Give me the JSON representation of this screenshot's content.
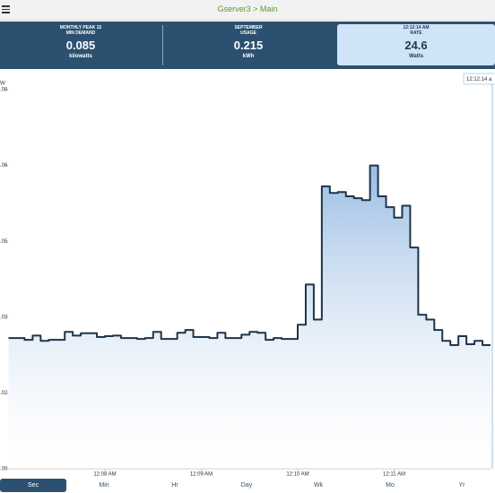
{
  "header": {
    "title": "Gserver3 > Main"
  },
  "stats": [
    {
      "label": [
        "MONTHLY PEAK 15",
        "MIN DEMAND"
      ],
      "value": "0.085",
      "unit": "kilowatts",
      "selected": false
    },
    {
      "label": [
        "SEPTEMBER",
        "USAGE"
      ],
      "value": "0.215",
      "unit": "kWh",
      "selected": false
    },
    {
      "label": [
        "12:12:14 AM",
        "RATE"
      ],
      "value": "24.6",
      "unit": "Watts",
      "selected": true
    }
  ],
  "chart_data": {
    "type": "line",
    "step": true,
    "ylabel": "W",
    "color": "#1f3548",
    "fill_color": "#8fb5e0",
    "hover_label": "12:12:14 a",
    "x": [
      420,
      425,
      430,
      435,
      440,
      445,
      450,
      455,
      460,
      465,
      470,
      475,
      480,
      485,
      490,
      495,
      500,
      505,
      510,
      515,
      520,
      525,
      530,
      535,
      540,
      545,
      550,
      555,
      560,
      565,
      570,
      575,
      580,
      585,
      590,
      595,
      600,
      605,
      610,
      615,
      620,
      625,
      630,
      635,
      640,
      645,
      650,
      655,
      660,
      665,
      670,
      675,
      680,
      685,
      690,
      695,
      700,
      705,
      710,
      715,
      720
    ],
    "values": [
      0.0276,
      0.0276,
      0.0272,
      0.0281,
      0.027,
      0.0272,
      0.0272,
      0.0289,
      0.0281,
      0.0286,
      0.0286,
      0.0278,
      0.028,
      0.0281,
      0.0276,
      0.0276,
      0.0274,
      0.0276,
      0.0289,
      0.0274,
      0.0274,
      0.0287,
      0.0293,
      0.0278,
      0.0278,
      0.0276,
      0.0287,
      0.0276,
      0.0276,
      0.0283,
      0.0289,
      0.0287,
      0.0272,
      0.0276,
      0.0274,
      0.0274,
      0.0304,
      0.0389,
      0.0315,
      0.0596,
      0.0582,
      0.0584,
      0.0575,
      0.0571,
      0.0567,
      0.064,
      0.0575,
      0.0552,
      0.053,
      0.0555,
      0.0467,
      0.0325,
      0.0315,
      0.0293,
      0.027,
      0.0261,
      0.028,
      0.0263,
      0.027,
      0.0261,
      0.0261
    ],
    "xlim": [
      420,
      720
    ],
    "xticks": [
      {
        "value": 480,
        "label": "12:08 AM"
      },
      {
        "value": 540,
        "label": "12:09 AM"
      },
      {
        "value": 600,
        "label": "12:10 AM"
      },
      {
        "value": 660,
        "label": "12:11 AM"
      }
    ],
    "ylim": [
      0,
      0.08
    ],
    "yticks": [
      {
        "value": 0,
        "label": ".00"
      },
      {
        "value": 0.016,
        "label": ".02"
      },
      {
        "value": 0.032,
        "label": ".03"
      },
      {
        "value": 0.048,
        "label": ".05"
      },
      {
        "value": 0.064,
        "label": ".06"
      },
      {
        "value": 0.08,
        "label": ".08"
      }
    ],
    "grid": false
  },
  "tabs": {
    "items": [
      "Sec",
      "Min",
      "Hr",
      "Day",
      "Wk",
      "Mo",
      "Yr"
    ],
    "selected": 0
  }
}
